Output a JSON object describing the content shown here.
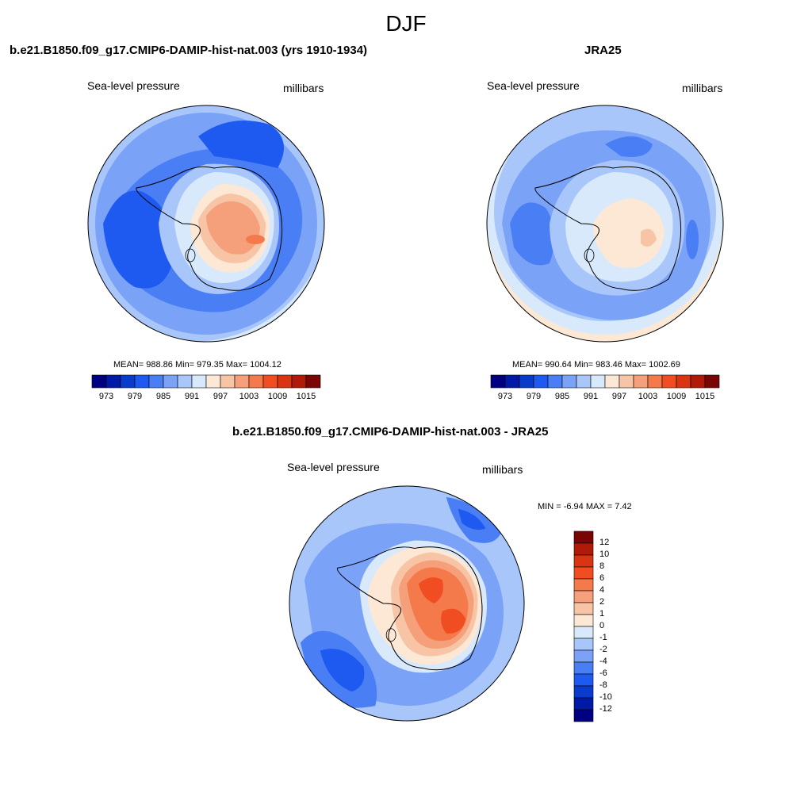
{
  "title": "DJF",
  "panels": [
    {
      "title": "b.e21.B1850.f09_g17.CMIP6-DAMIP-hist-nat.003 (yrs 1910-1934)",
      "variable": "Sea-level pressure",
      "units": "millibars",
      "stats": "MEAN= 988.86  Min= 979.35  Max= 1004.12"
    },
    {
      "title": "JRA25",
      "variable": "Sea-level pressure",
      "units": "millibars",
      "stats": "MEAN= 990.64  Min= 983.46  Max= 1002.69"
    },
    {
      "title": "b.e21.B1850.f09_g17.CMIP6-DAMIP-hist-nat.003 - JRA25",
      "variable": "Sea-level pressure",
      "units": "millibars",
      "stats": "MIN =   -6.94 MAX =    7.42"
    }
  ],
  "colorbar_abs": {
    "tick_labels": [
      "973",
      "979",
      "985",
      "991",
      "997",
      "1003",
      "1009",
      "1015"
    ],
    "colors": [
      "#000080",
      "#001aa8",
      "#0a3ccc",
      "#1e5af0",
      "#4a7ef5",
      "#7aa2f7",
      "#a9c6fa",
      "#d8e9fc",
      "#fde8d6",
      "#f8c4a6",
      "#f5a07a",
      "#f47a4c",
      "#f04e22",
      "#d93512",
      "#b01a08",
      "#7a0505"
    ]
  },
  "colorbar_diff": {
    "tick_labels": [
      "12",
      "10",
      "8",
      "6",
      "4",
      "2",
      "1",
      "0",
      "-1",
      "-2",
      "-4",
      "-6",
      "-8",
      "-10",
      "-12"
    ],
    "colors": [
      "#7a0505",
      "#b01a08",
      "#d93512",
      "#f04e22",
      "#f47a4c",
      "#f5a07a",
      "#f8c4a6",
      "#fde8d6",
      "#d8e9fc",
      "#a9c6fa",
      "#7aa2f7",
      "#4a7ef5",
      "#1e5af0",
      "#0a3ccc",
      "#001aa8",
      "#000080"
    ]
  }
}
